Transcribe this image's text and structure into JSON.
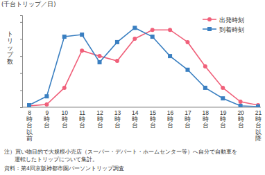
{
  "chart_data": {
    "type": "line",
    "ylabel": "トリップ数",
    "annotations": [
      "(千台トリップ／日)",
      "注）買い物目的で大規模小売店（スーパー・デパート・ホームセンター等）へ自分で自動車を",
      "運転したトリップについて集計。",
      "資料：第4回京阪神都市圏パーソントリップ調査"
    ],
    "categories": [
      "8時台以前",
      "9時台",
      "10時台",
      "11時台",
      "12時台",
      "13時台",
      "14時台",
      "15時台",
      "16時台",
      "17時台",
      "18時台",
      "19時台",
      "20時台",
      "21時台以降"
    ],
    "series": [
      {
        "name": "出発時刻",
        "color": "#f0607a",
        "marker": "circle",
        "values": [
          4,
          8,
          57,
          166,
          150,
          136,
          201,
          227,
          227,
          191,
          120,
          57,
          16,
          6
        ]
      },
      {
        "name": "到着時刻",
        "color": "#3a7fc1",
        "marker": "square",
        "values": [
          6,
          32,
          207,
          213,
          132,
          191,
          233,
          207,
          150,
          110,
          57,
          26,
          4,
          2
        ]
      }
    ],
    "ylim": [
      0,
      270
    ],
    "yticks": [
      0,
      50,
      100,
      150,
      200,
      250
    ],
    "grid": false,
    "legend": "upper right",
    "tick_labels": "x"
  }
}
